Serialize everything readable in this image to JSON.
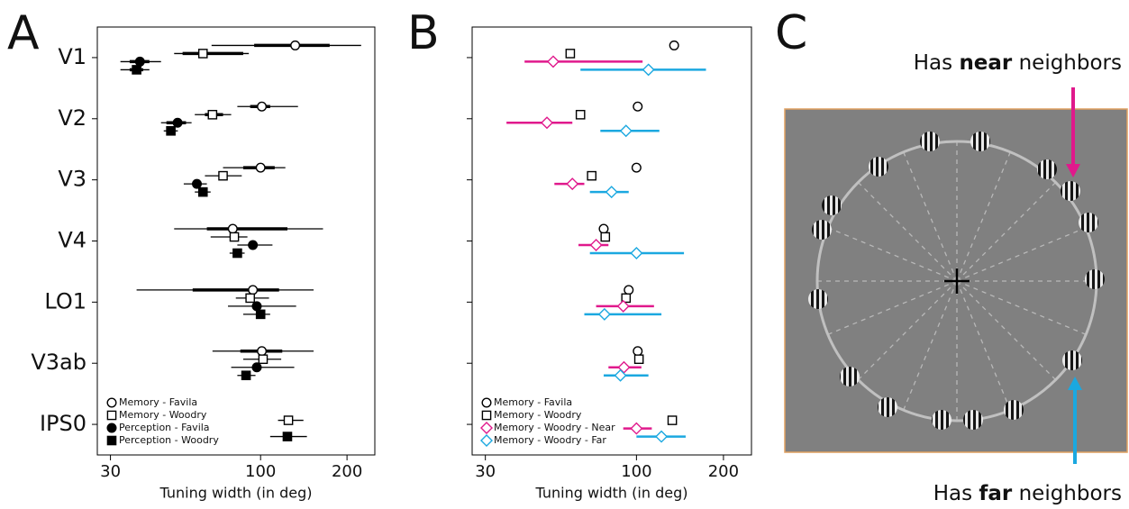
{
  "chart_data": [
    {
      "type": "scatter",
      "panel_label": "A",
      "xlabel": "Tuning width (in deg)",
      "xscale": "log",
      "xlim": [
        27,
        250
      ],
      "xticks": [
        30,
        100,
        200
      ],
      "legend": "lower left",
      "categories": [
        "V1",
        "V2",
        "V3",
        "V4",
        "LO1",
        "V3ab",
        "IPS0"
      ],
      "series": [
        {
          "name": "Memory - Favila",
          "marker": "circle",
          "fill": "open",
          "color": "#000000",
          "values": [
            132,
            101,
            100,
            80,
            94,
            101,
            null
          ],
          "ci_outer": [
            [
              67.5,
              224
            ],
            [
              83,
              135
            ],
            [
              74,
              122
            ],
            [
              50,
              165
            ],
            [
              37,
              153
            ],
            [
              68,
              153
            ],
            null
          ],
          "ci_inner": [
            [
              95,
              174
            ],
            [
              92,
              108
            ],
            [
              87,
              112
            ],
            [
              65,
              124
            ],
            [
              58,
              116
            ],
            [
              85,
              119
            ],
            null
          ]
        },
        {
          "name": "Memory - Woodry",
          "marker": "square",
          "fill": "open",
          "color": "#000000",
          "values": [
            63,
            68,
            74,
            81,
            92,
            102,
            125
          ],
          "ci_outer": [
            [
              50,
              91
            ],
            [
              59,
              79
            ],
            [
              64,
              86
            ],
            [
              67,
              90
            ],
            [
              82,
              107
            ],
            [
              87,
              118
            ],
            [
              115,
              141
            ]
          ],
          "ci_inner": [
            [
              53.5,
              87
            ],
            [
              64,
              74
            ],
            null,
            null,
            null,
            null,
            null
          ]
        },
        {
          "name": "Perception - Favila",
          "marker": "circle",
          "fill": "filled",
          "color": "#000000",
          "values": [
            38,
            51.4,
            60,
            94,
            97,
            97,
            null
          ],
          "ci_outer": [
            [
              32.5,
              45
            ],
            [
              45,
              57.5
            ],
            [
              54,
              65
            ],
            [
              83,
              110
            ],
            [
              77,
              133
            ],
            [
              79,
              131
            ],
            null
          ],
          "ci_inner": [
            [
              35,
              41
            ],
            [
              47,
              55
            ],
            null,
            null,
            null,
            null,
            null
          ]
        },
        {
          "name": "Perception - Woodry",
          "marker": "square",
          "fill": "filled",
          "color": "#000000",
          "values": [
            37,
            48.7,
            63,
            83,
            100,
            89,
            124
          ],
          "ci_outer": [
            [
              32.5,
              41
            ],
            [
              46,
              51.5
            ],
            [
              59,
              67
            ],
            [
              78,
              88
            ],
            [
              87,
              108
            ],
            [
              83,
              96
            ],
            [
              108,
              145
            ]
          ],
          "ci_inner": [
            [
              35,
              39
            ],
            null,
            null,
            null,
            null,
            null,
            null
          ]
        }
      ]
    },
    {
      "type": "scatter",
      "panel_label": "B",
      "xlabel": "Tuning width (in deg)",
      "xscale": "log",
      "xlim": [
        27,
        250
      ],
      "xticks": [
        30,
        100,
        200
      ],
      "legend": "lower left",
      "categories": [
        null,
        null,
        null,
        null,
        null,
        null,
        null
      ],
      "series": [
        {
          "name": "Memory - Favila",
          "marker": "circle",
          "fill": "open",
          "color": "#000000",
          "values": [
            135,
            101,
            100,
            77,
            94,
            101,
            null
          ]
        },
        {
          "name": "Memory - Woodry",
          "marker": "square",
          "fill": "open",
          "color": "#000000",
          "values": [
            59,
            64,
            70,
            78,
            92,
            102,
            133
          ]
        },
        {
          "name": "Memory - Woodry - Near",
          "marker": "diamond",
          "fill": "open",
          "color": "#e0198c",
          "values": [
            51.5,
            49,
            60,
            72.5,
            90,
            90.5,
            100
          ],
          "ci_outer": [
            [
              41,
              105
            ],
            [
              35.5,
              60
            ],
            [
              52,
              66
            ],
            [
              63,
              80
            ],
            [
              72.5,
              115
            ],
            [
              80,
              104
            ],
            [
              90,
              113
            ]
          ]
        },
        {
          "name": "Memory - Woodry - Far",
          "marker": "diamond",
          "fill": "open",
          "color": "#1ba8e0",
          "values": [
            110,
            92,
            82,
            100,
            77.5,
            88,
            122
          ],
          "ci_outer": [
            [
              64,
              174
            ],
            [
              75,
              120
            ],
            [
              69,
              94
            ],
            [
              69,
              146
            ],
            [
              66,
              122
            ],
            [
              77,
              110
            ],
            [
              100,
              148
            ]
          ]
        }
      ]
    }
  ],
  "panel_c": {
    "panel_label": "C",
    "top_text": [
      "Has",
      "near",
      "neighbors"
    ],
    "top_color": "#e0198c",
    "bottom_text": [
      "Has",
      "far",
      "neighbors"
    ],
    "bottom_color": "#1ba8e0"
  }
}
